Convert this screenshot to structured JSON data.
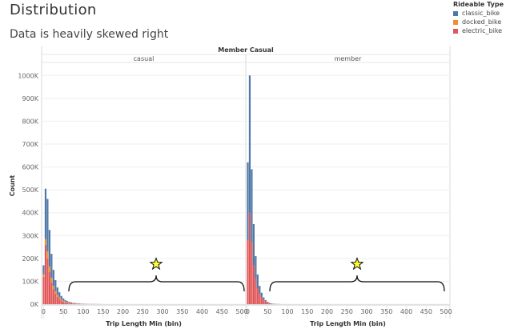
{
  "title": "Distribution",
  "subtitle": "Data is heavily skewed right",
  "legend": {
    "title": "Rideable Type",
    "items": [
      {
        "label": "classic_bike",
        "color": "#4e79a7"
      },
      {
        "label": "docked_bike",
        "color": "#f28e2b"
      },
      {
        "label": "electric_bike",
        "color": "#e15759"
      }
    ]
  },
  "chart_data": {
    "type": "bar",
    "stacked": true,
    "column_header": "Member Casual",
    "ylabel": "Count",
    "xlabel": "Trip Length Min (bin)",
    "ylim": [
      0,
      1050000
    ],
    "yticks": [
      0,
      100000,
      200000,
      300000,
      400000,
      500000,
      600000,
      700000,
      800000,
      900000,
      1000000
    ],
    "ytick_labels": [
      "0K",
      "100K",
      "200K",
      "300K",
      "400K",
      "500K",
      "600K",
      "700K",
      "800K",
      "900K",
      "1000K"
    ],
    "xlim": [
      -5,
      510
    ],
    "xticks": [
      0,
      50,
      100,
      150,
      200,
      250,
      300,
      350,
      400,
      450,
      500
    ],
    "xtick_labels": [
      "0",
      "50",
      "100",
      "150",
      "200",
      "250",
      "300",
      "350",
      "400",
      "450",
      "500"
    ],
    "bin_width": 5,
    "panels": [
      {
        "name": "casual",
        "x": [
          0,
          5,
          10,
          15,
          20,
          25,
          30,
          35,
          40,
          45,
          50,
          55,
          60,
          65,
          70,
          75,
          80,
          85,
          90,
          95,
          100,
          105,
          110,
          115,
          120,
          125,
          130,
          135,
          140,
          145
        ],
        "series": [
          {
            "name": "electric_bike",
            "values": [
              120000,
              260000,
              200000,
              140000,
              95000,
              65000,
              45000,
              32000,
              23000,
              16000,
              11000,
              8000,
              6000,
              4500,
              3500,
              2700,
              2100,
              1700,
              1400,
              1100,
              900,
              700,
              600,
              500,
              400,
              350,
              300,
              250,
              200,
              150
            ]
          },
          {
            "name": "docked_bike",
            "values": [
              10000,
              25000,
              30000,
              25000,
              20000,
              15000,
              12000,
              9000,
              7000,
              5000,
              4000,
              3000,
              2500,
              2000,
              1700,
              1400,
              1200,
              1000,
              900,
              800,
              700,
              600,
              500,
              450,
              400,
              350,
              300,
              250,
              200,
              150
            ]
          },
          {
            "name": "classic_bike",
            "values": [
              40000,
              220000,
              230000,
              160000,
              105000,
              70000,
              48000,
              32000,
              22000,
              15000,
              10000,
              7000,
              5000,
              3500,
              2800,
              1900,
              1700,
              1300,
              1000,
              800,
              600,
              500,
              400,
              350,
              300,
              250,
              200,
              150,
              100,
              100
            ]
          }
        ]
      },
      {
        "name": "member",
        "x": [
          0,
          5,
          10,
          15,
          20,
          25,
          30,
          35,
          40,
          45,
          50,
          55,
          60,
          65,
          70,
          75,
          80
        ],
        "series": [
          {
            "name": "electric_bike",
            "values": [
              280000,
              400000,
              270000,
              170000,
              110000,
              70000,
              45000,
              30000,
              19000,
              12000,
              7000,
              4000,
              2500,
              1500,
              1000,
              700,
              500
            ]
          },
          {
            "name": "docked_bike",
            "values": [
              0,
              0,
              0,
              0,
              0,
              0,
              0,
              0,
              0,
              0,
              0,
              0,
              0,
              0,
              0,
              0,
              0
            ]
          },
          {
            "name": "classic_bike",
            "values": [
              340000,
              600000,
              320000,
              180000,
              100000,
              60000,
              35000,
              20000,
              11000,
              6000,
              3000,
              2000,
              1000,
              500,
              300,
              200,
              100
            ]
          }
        ]
      }
    ]
  }
}
